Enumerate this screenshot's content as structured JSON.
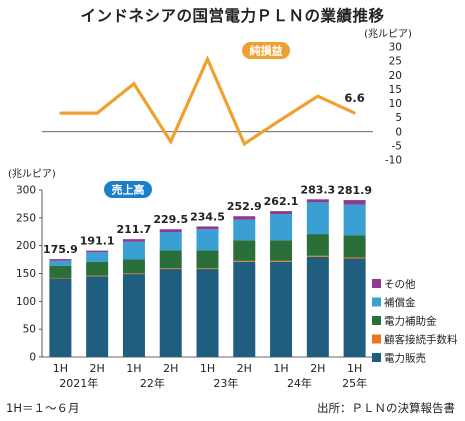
{
  "title": "インドネシアの国営電力ＰＬＮの業績推移",
  "notes": {
    "period_note": "1H＝１～６月",
    "source": "出所：ＰＬＮの決算報告書"
  },
  "colors": {
    "line": "#f0a030",
    "electricity_sales": "#1f5e7e",
    "customer_fees": "#e8761f",
    "subsidy": "#2a6e3a",
    "compensation": "#3aa0d4",
    "other": "#8e3a90",
    "badge": "#f0a030",
    "badge_blue": "#1a7ec8"
  },
  "chart_data": [
    {
      "type": "line",
      "badge": "純損益",
      "ylabel": "(兆ルピア)",
      "ylim": [
        -10,
        30
      ],
      "yticks": [
        -10,
        -5,
        0,
        5,
        10,
        15,
        20,
        25,
        30
      ],
      "x": [
        "2021-1H",
        "2021-2H",
        "2022-1H",
        "2022-2H",
        "2023-1H",
        "2023-2H",
        "2024-1H",
        "2024-2H",
        "2025-1H"
      ],
      "values": [
        6.6,
        6.6,
        17.0,
        -3.5,
        25.7,
        -4.3,
        4.3,
        12.6,
        6.6
      ],
      "point_labels": [
        null,
        null,
        null,
        null,
        null,
        null,
        null,
        null,
        "6.6"
      ]
    },
    {
      "type": "bar",
      "stacked": true,
      "badge": "売上高",
      "ylabel": "(兆ルピア)",
      "ylim": [
        0,
        300
      ],
      "yticks": [
        0,
        50,
        100,
        150,
        200,
        250,
        300
      ],
      "categories": [
        "1H",
        "2H",
        "1H",
        "2H",
        "1H",
        "2H",
        "1H",
        "2H",
        "1H"
      ],
      "year_labels": [
        {
          "index": 0.5,
          "label": "2021年"
        },
        {
          "index": 2.5,
          "label": "22年"
        },
        {
          "index": 4.5,
          "label": "23年"
        },
        {
          "index": 6.5,
          "label": "24年"
        },
        {
          "index": 8,
          "label": "25年"
        }
      ],
      "totals": [
        "175.9",
        "191.1",
        "211.7",
        "229.5",
        "234.5",
        "252.9",
        "262.1",
        "283.3",
        "281.9"
      ],
      "series": [
        {
          "name": "電力販売",
          "key": "electricity_sales",
          "values": [
            141,
            145,
            149,
            158,
            158,
            171,
            171,
            180,
            177
          ]
        },
        {
          "name": "顧客接続手数料",
          "key": "customer_fees",
          "values": [
            1.0,
            1.2,
            1.2,
            1.5,
            1.5,
            1.7,
            1.8,
            1.8,
            1.8
          ]
        },
        {
          "name": "電力補助金",
          "key": "subsidy",
          "values": [
            22,
            25,
            25,
            32,
            32,
            37,
            37,
            39,
            40
          ]
        },
        {
          "name": "補償金",
          "key": "compensation",
          "values": [
            9,
            17,
            32,
            33,
            38,
            37,
            47,
            57,
            55
          ]
        },
        {
          "name": "その他",
          "key": "other",
          "values": [
            2.9,
            2.9,
            4.5,
            5.0,
            5.0,
            6.2,
            5.3,
            5.5,
            8.1
          ]
        }
      ],
      "legend": [
        "その他",
        "補償金",
        "電力補助金",
        "顧客接続手数料",
        "電力販売"
      ],
      "legend_placement": "right"
    }
  ]
}
